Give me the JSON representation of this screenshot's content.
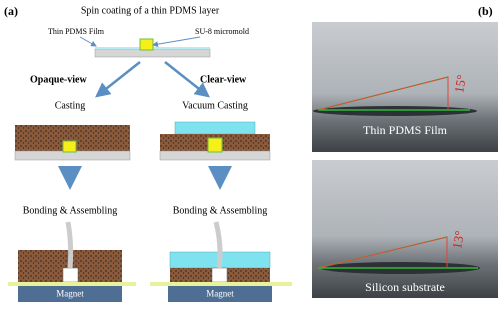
{
  "panel_a": {
    "label": "(a)",
    "title": "Spin coating of a thin PDMS layer",
    "film_label": "Thin PDMS Film",
    "mold_label": "SU-8 micromold",
    "opaque": {
      "heading": "Opaque-view",
      "step1": "Casting",
      "step2": "Bonding & Assembling",
      "magnet": "Magnet"
    },
    "clear": {
      "heading": "Clear-view",
      "step1": "Vacuum Casting",
      "step2": "Bonding & Assembling",
      "magnet": "Magnet"
    }
  },
  "panel_b": {
    "label": "(b)",
    "photos": [
      {
        "angle": "15°",
        "caption": "Thin PDMS Film"
      },
      {
        "angle": "13°",
        "caption": "Silicon substrate"
      }
    ]
  }
}
